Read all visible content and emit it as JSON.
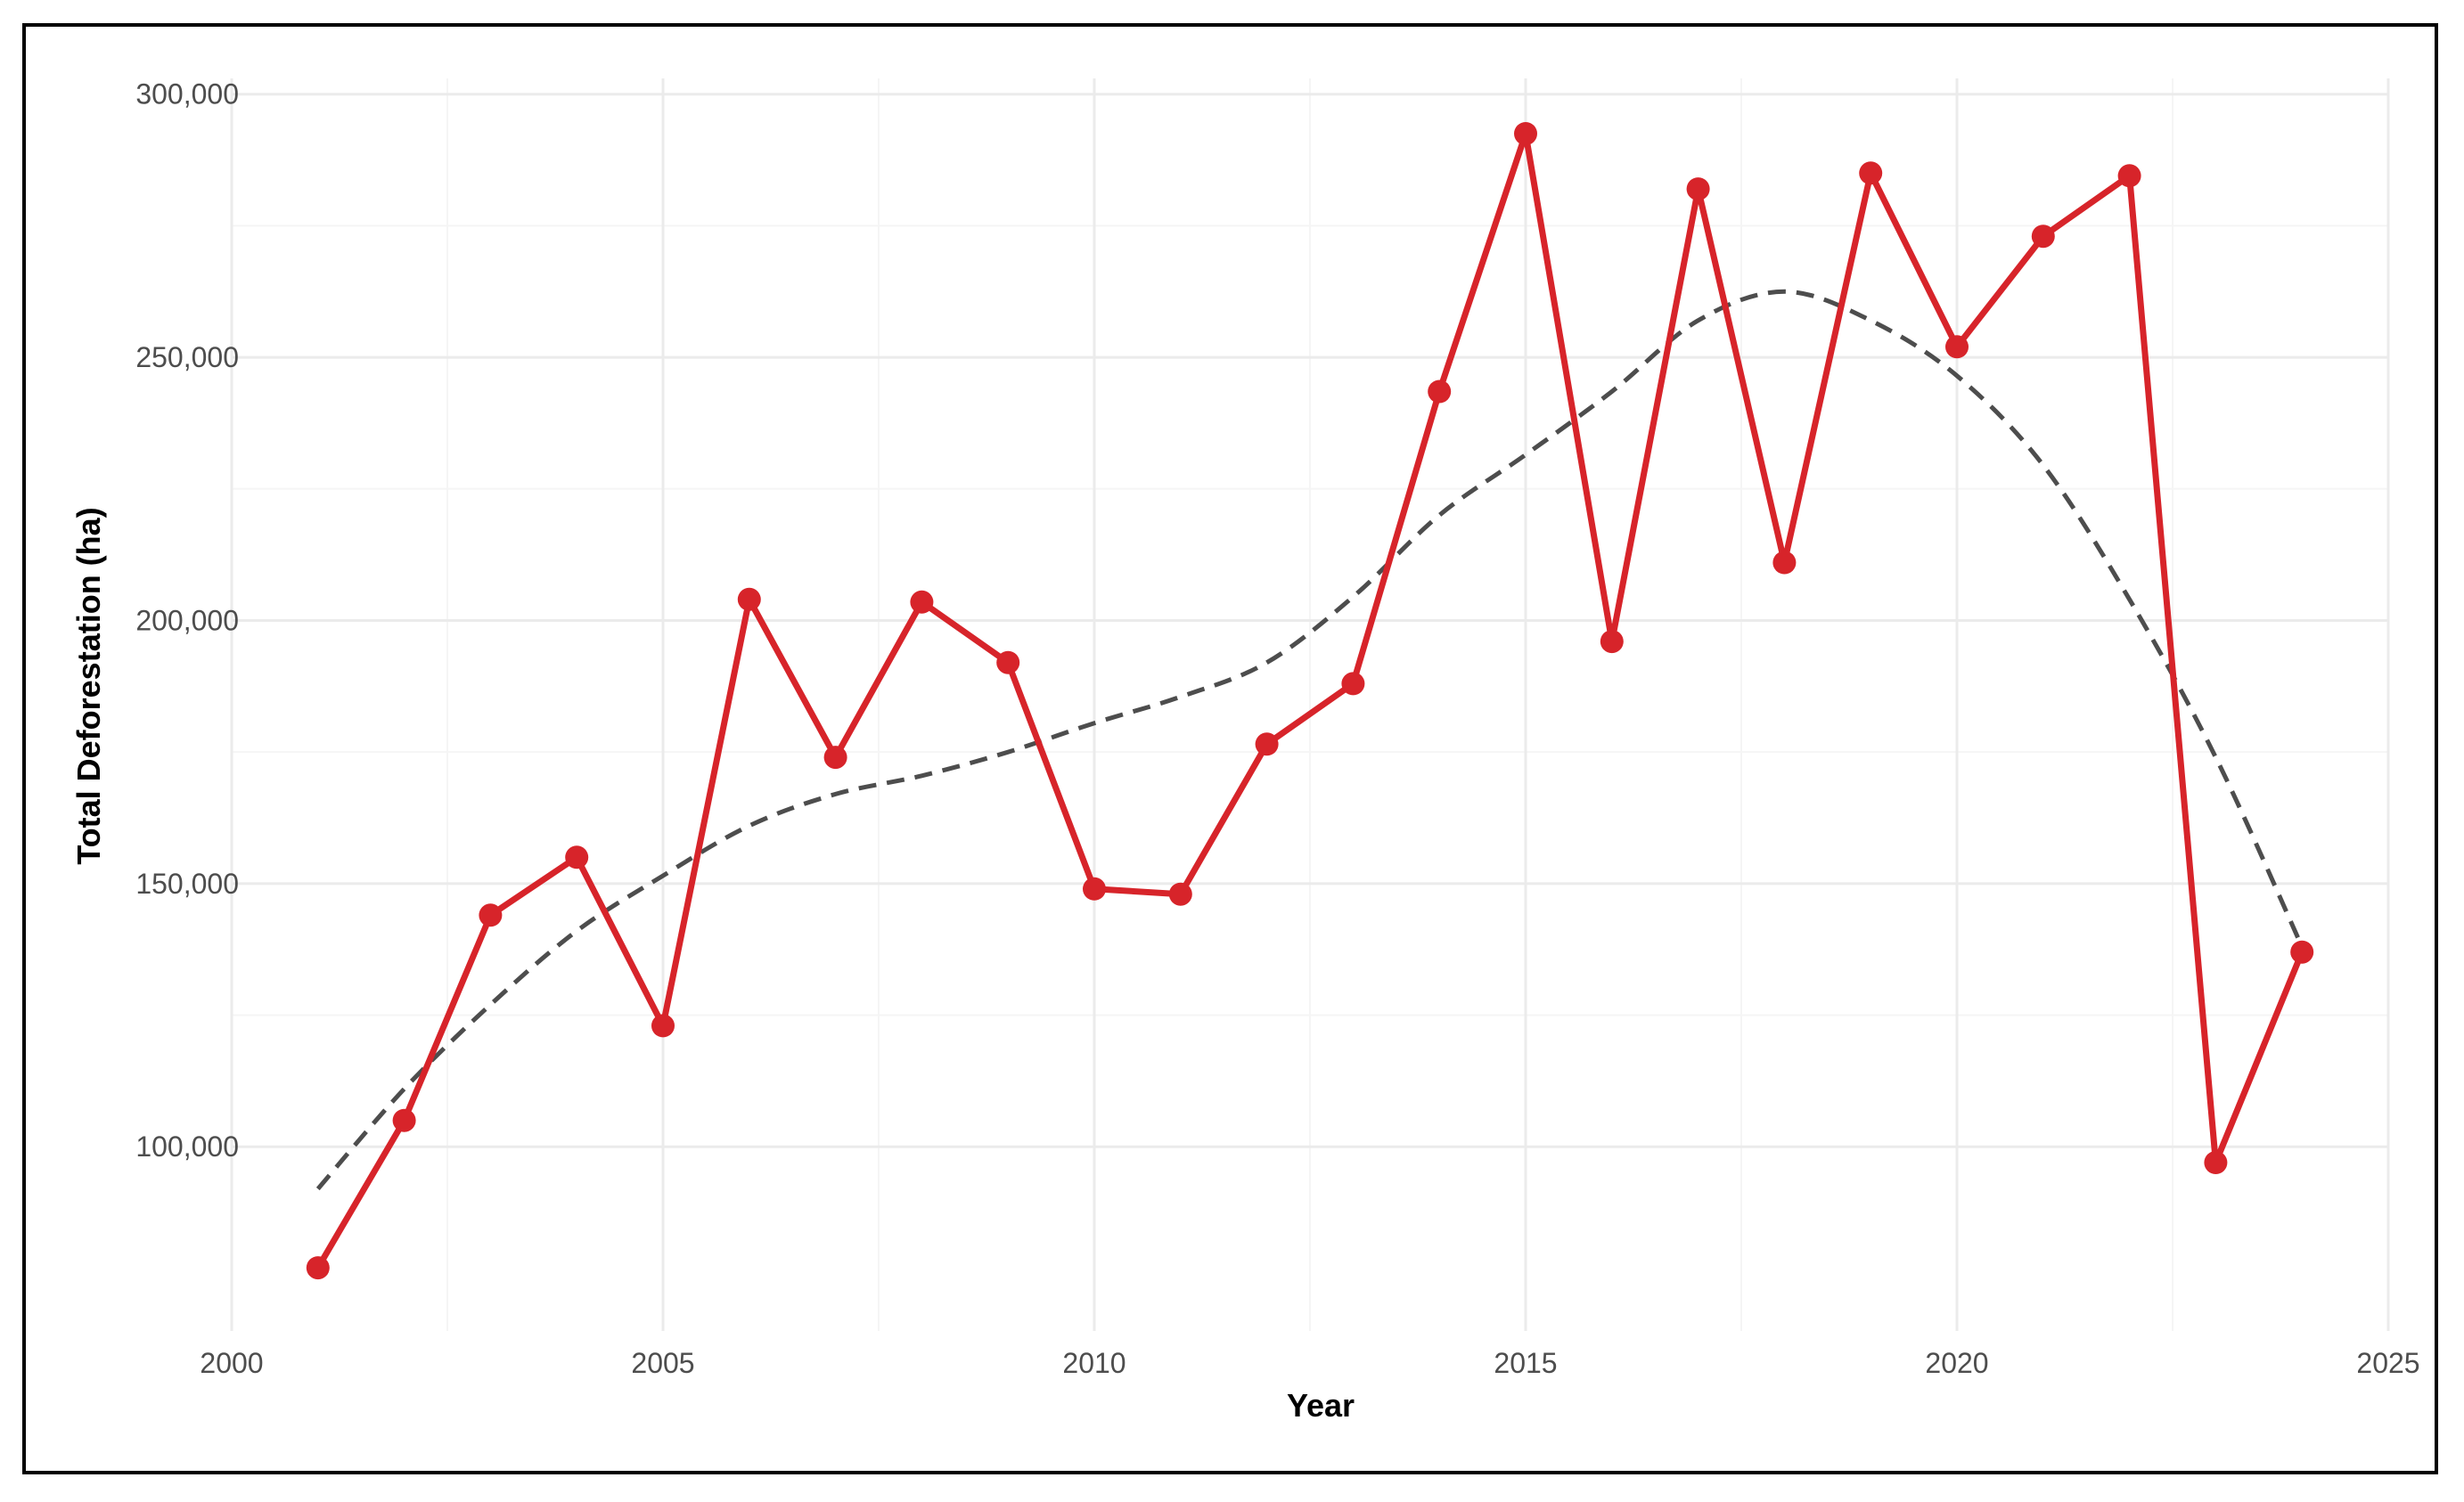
{
  "chart_data": {
    "type": "line",
    "title": "",
    "xlabel": "Year",
    "ylabel": "Total Deforestation (ha)",
    "xlim": [
      2000,
      2025
    ],
    "ylim": [
      65000,
      303000
    ],
    "x_ticks": [
      2000,
      2005,
      2010,
      2015,
      2020,
      2025
    ],
    "y_ticks": [
      100000,
      150000,
      200000,
      250000,
      300000
    ],
    "y_tick_labels": [
      "100,000",
      "150,000",
      "200,000",
      "250,000",
      "300,000"
    ],
    "grid": true,
    "legend": "none",
    "series": [
      {
        "style": "line-with-points",
        "color": "#d7242a",
        "x": [
          2001,
          2002,
          2003,
          2004,
          2005,
          2006,
          2007,
          2008,
          2009,
          2010,
          2011,
          2012,
          2013,
          2014,
          2015,
          2016,
          2017,
          2018,
          2019,
          2020,
          2021,
          2022,
          2023,
          2024
        ],
        "values": [
          77000,
          105000,
          144000,
          155000,
          123000,
          204000,
          174000,
          203500,
          192000,
          149000,
          148000,
          176500,
          188000,
          243500,
          292500,
          196000,
          282000,
          211000,
          285000,
          252000,
          273000,
          284500,
          97000,
          137000
        ]
      },
      {
        "style": "dashed-trend",
        "color": "#4d4d4d",
        "x": [
          2001,
          2002,
          2003,
          2004,
          2005,
          2006,
          2007,
          2008,
          2009,
          2010,
          2011,
          2012,
          2013,
          2014,
          2015,
          2016,
          2017,
          2018,
          2019,
          2020,
          2021,
          2022,
          2023,
          2024
        ],
        "values": [
          92000,
          111000,
          127000,
          141000,
          151500,
          161000,
          167000,
          170500,
          175000,
          180500,
          185500,
          192000,
          204500,
          220000,
          231500,
          243500,
          257000,
          262500,
          257000,
          246500,
          229500,
          204000,
          174000,
          138000
        ]
      }
    ]
  }
}
